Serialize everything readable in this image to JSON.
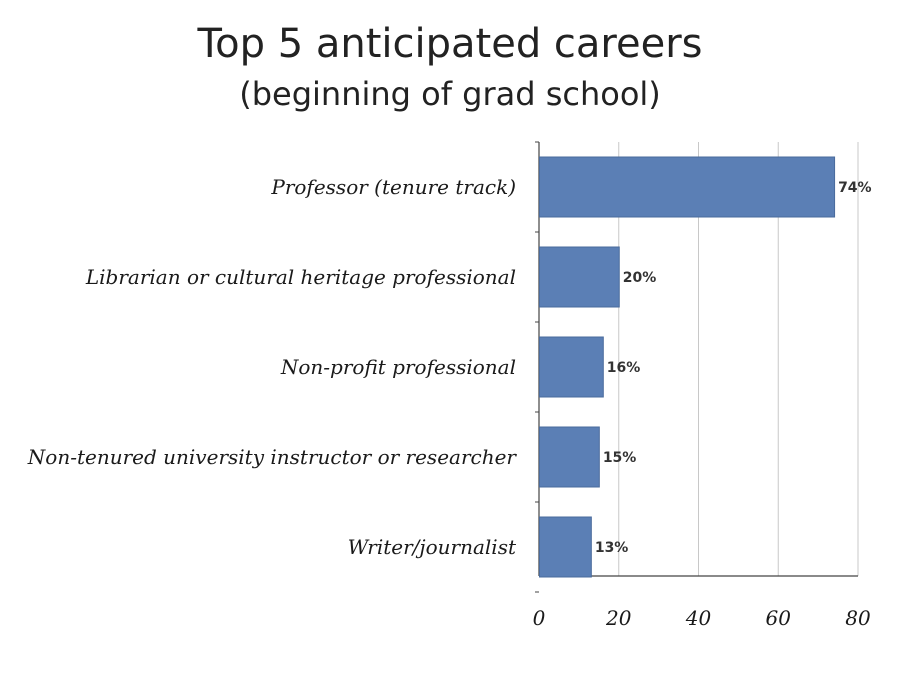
{
  "chart_data": {
    "type": "bar",
    "orientation": "horizontal",
    "title": "Top 5 anticipated careers",
    "subtitle": "(beginning of grad school)",
    "categories": [
      "Professor (tenure track)",
      "Librarian or cultural heritage professional",
      "Non-profit professional",
      "Non-tenured university instructor or researcher",
      "Writer/journalist"
    ],
    "values": [
      74,
      20,
      16,
      15,
      13
    ],
    "value_labels": [
      "74%",
      "20%",
      "16%",
      "15%",
      "13%"
    ],
    "xlim": [
      0,
      80
    ],
    "xticks": [
      "0",
      "20",
      "40",
      "60",
      "80"
    ],
    "grid": "vertical",
    "legend": "none",
    "bar_color": "#5b7fb5"
  }
}
